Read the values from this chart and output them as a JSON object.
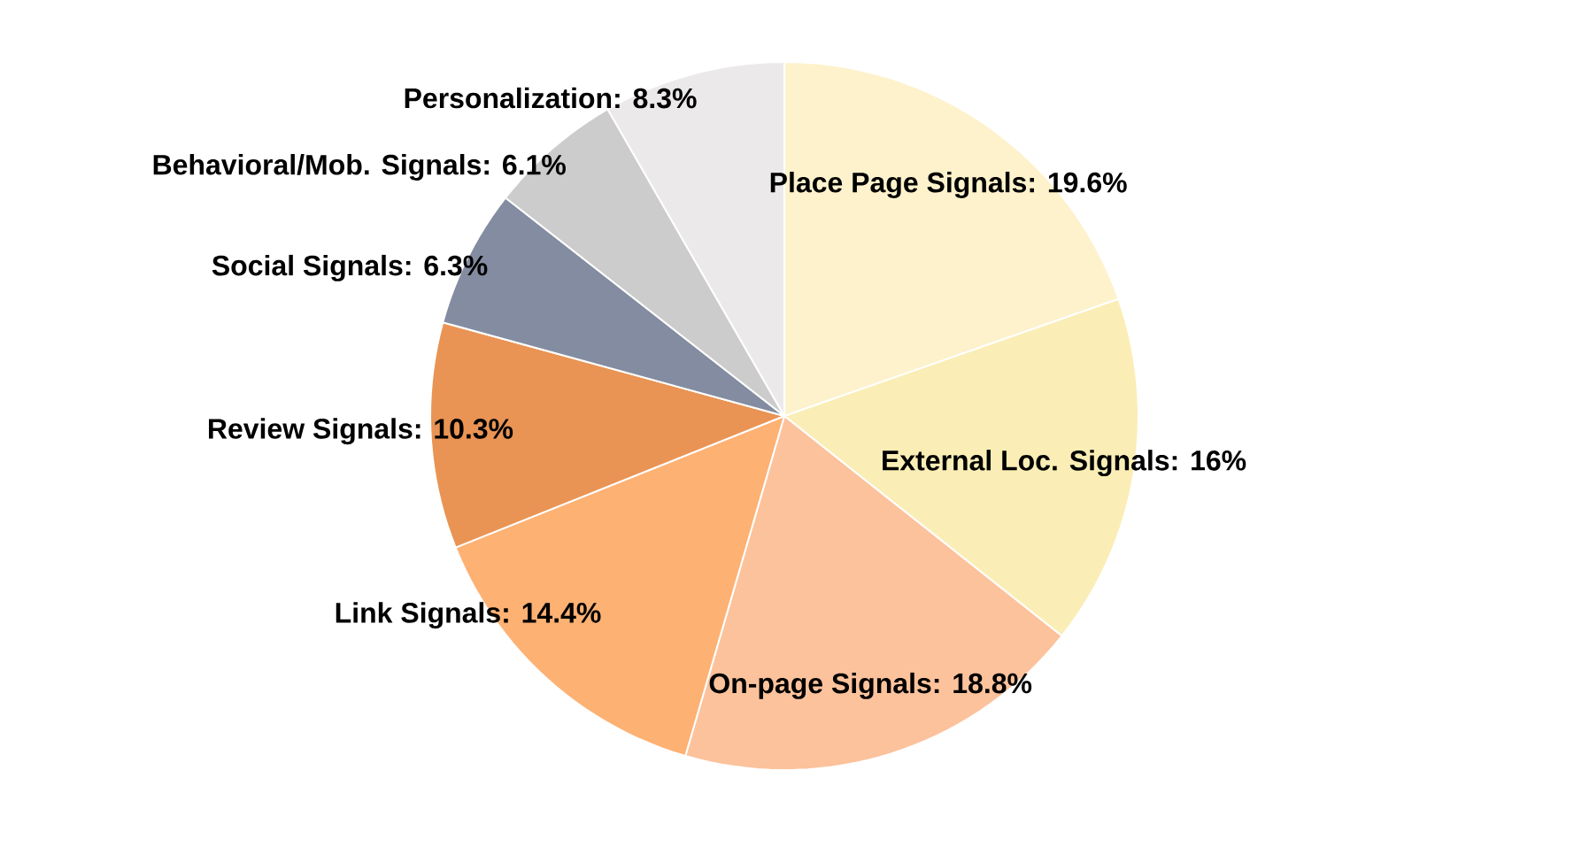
{
  "chart_data": {
    "type": "pie",
    "categories": [
      "Place Page Signals",
      "External Loc. Signals",
      "On-page Signals",
      "Link Signals",
      "Review Signals",
      "Social Signals",
      "Behavioral/Mob. Signals",
      "Personalization"
    ],
    "values": [
      19.6,
      16,
      18.8,
      14.4,
      10.3,
      6.3,
      6.1,
      8.3
    ],
    "value_labels": [
      ": 19.6%",
      ": 16%",
      ": 18.8%",
      ": 14.4%",
      ": 10.3%",
      ": 6.3%",
      ": 6.1%",
      ": 8.3%"
    ],
    "colors": [
      "#fdf2cc",
      "#faeeb6",
      "#fcc29c",
      "#fdb173",
      "#e99454",
      "#838ca0",
      "#cccccc",
      "#ebe9ea"
    ]
  }
}
